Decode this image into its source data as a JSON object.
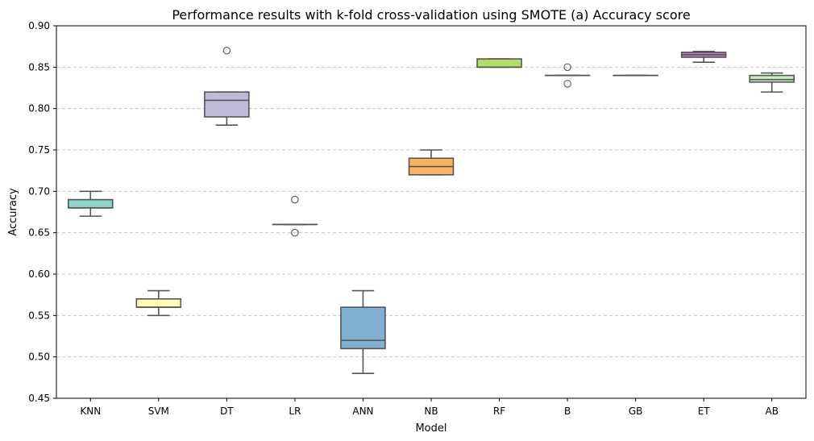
{
  "chart_data": {
    "type": "box",
    "title": "Performance results with k-fold cross-validation using SMOTE (a) Accuracy score",
    "xlabel": "Model",
    "ylabel": "Accuracy",
    "ylim": [
      0.45,
      0.9
    ],
    "yticks": [
      "0.45",
      "0.50",
      "0.55",
      "0.60",
      "0.65",
      "0.70",
      "0.75",
      "0.80",
      "0.85",
      "0.90"
    ],
    "grid": "y-dashed",
    "categories": [
      "KNN",
      "SVM",
      "DT",
      "LR",
      "ANN",
      "NB",
      "RF",
      "B",
      "GB",
      "ET",
      "AB"
    ],
    "boxes": [
      {
        "label": "KNN",
        "min": 0.67,
        "q1": 0.68,
        "median": 0.68,
        "q3": 0.69,
        "max": 0.7,
        "outliers": [],
        "color": "#8dd3c7"
      },
      {
        "label": "SVM",
        "min": 0.55,
        "q1": 0.56,
        "median": 0.56,
        "q3": 0.57,
        "max": 0.58,
        "outliers": [],
        "color": "#ffffb3"
      },
      {
        "label": "DT",
        "min": 0.78,
        "q1": 0.79,
        "median": 0.81,
        "q3": 0.82,
        "max": 0.82,
        "outliers": [
          0.87
        ],
        "color": "#bebada"
      },
      {
        "label": "LR",
        "min": 0.66,
        "q1": 0.66,
        "median": 0.66,
        "q3": 0.66,
        "max": 0.66,
        "outliers": [
          0.69,
          0.65
        ],
        "color": "#fb8072"
      },
      {
        "label": "ANN",
        "min": 0.48,
        "q1": 0.51,
        "median": 0.52,
        "q3": 0.56,
        "max": 0.58,
        "outliers": [],
        "color": "#80b1d3"
      },
      {
        "label": "NB",
        "min": 0.72,
        "q1": 0.72,
        "median": 0.73,
        "q3": 0.74,
        "max": 0.75,
        "outliers": [],
        "color": "#fdb462"
      },
      {
        "label": "RF",
        "min": 0.85,
        "q1": 0.85,
        "median": 0.85,
        "q3": 0.86,
        "max": 0.86,
        "outliers": [],
        "color": "#b3de69"
      },
      {
        "label": "B",
        "min": 0.84,
        "q1": 0.84,
        "median": 0.84,
        "q3": 0.84,
        "max": 0.84,
        "outliers": [
          0.85,
          0.83
        ],
        "color": "#fccde5"
      },
      {
        "label": "GB",
        "min": 0.84,
        "q1": 0.84,
        "median": 0.84,
        "q3": 0.84,
        "max": 0.84,
        "outliers": [],
        "color": "#d9d9d9"
      },
      {
        "label": "ET",
        "min": 0.856,
        "q1": 0.862,
        "median": 0.865,
        "q3": 0.868,
        "max": 0.869,
        "outliers": [],
        "color": "#bc80bd"
      },
      {
        "label": "AB",
        "min": 0.82,
        "q1": 0.832,
        "median": 0.835,
        "q3": 0.84,
        "max": 0.843,
        "outliers": [],
        "color": "#ccebc5"
      }
    ]
  }
}
